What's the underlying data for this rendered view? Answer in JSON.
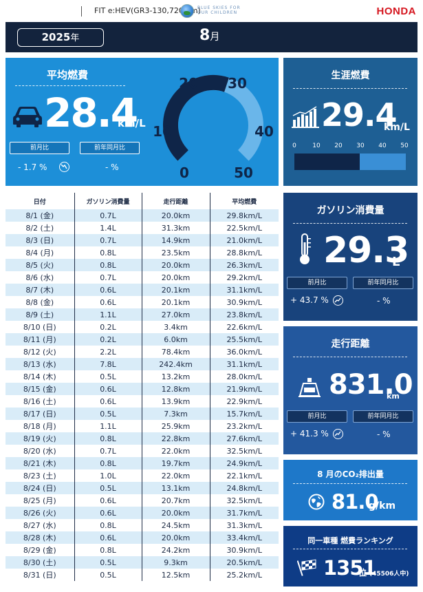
{
  "header": {
    "vehicle_model": "FIT e:HEV(GR3-130,720 km)",
    "slogan": "BLUE SKIES FOR OUR CHILDREN",
    "brand": "HONDA",
    "brand_color": "#d5161f"
  },
  "period": {
    "year": "2025",
    "year_unit": "年",
    "month": "8",
    "month_unit": "月"
  },
  "average": {
    "title": "平均燃費",
    "value": "28.4",
    "unit": "km/L",
    "prev_month_label": "前月比",
    "prev_year_label": "前年同月比",
    "prev_month_value": "- 1.7 %",
    "prev_year_value": "- %",
    "icon": "car-icon",
    "trend_icon": "trend-down-icon",
    "gauge": {
      "labels": [
        "0",
        "10",
        "20",
        "30",
        "40",
        "50"
      ],
      "min": 0,
      "max": 50,
      "value": 28.4
    }
  },
  "lifetime": {
    "title": "生涯燃費",
    "value": "29.4",
    "unit": "km/L",
    "icon": "bar-chart-icon",
    "scale_labels": [
      "0",
      "10",
      "20",
      "30",
      "40",
      "50"
    ],
    "scale_min": 0,
    "scale_max": 50,
    "bar_value": 29.4
  },
  "table": {
    "headers": [
      "日付",
      "ガソリン消費量",
      "走行距離",
      "平均燃費"
    ],
    "rows": [
      [
        "8/1 (金)",
        "0.7L",
        "20.0km",
        "29.8km/L"
      ],
      [
        "8/2 (土)",
        "1.4L",
        "31.3km",
        "22.5km/L"
      ],
      [
        "8/3 (日)",
        "0.7L",
        "14.9km",
        "21.0km/L"
      ],
      [
        "8/4 (月)",
        "0.8L",
        "23.5km",
        "28.8km/L"
      ],
      [
        "8/5 (火)",
        "0.8L",
        "20.0km",
        "26.3km/L"
      ],
      [
        "8/6 (水)",
        "0.7L",
        "20.0km",
        "29.2km/L"
      ],
      [
        "8/7 (木)",
        "0.6L",
        "20.1km",
        "31.1km/L"
      ],
      [
        "8/8 (金)",
        "0.6L",
        "20.1km",
        "30.9km/L"
      ],
      [
        "8/9 (土)",
        "1.1L",
        "27.0km",
        "23.8km/L"
      ],
      [
        "8/10 (日)",
        "0.2L",
        "3.4km",
        "22.6km/L"
      ],
      [
        "8/11 (月)",
        "0.2L",
        "6.0km",
        "25.5km/L"
      ],
      [
        "8/12 (火)",
        "2.2L",
        "78.4km",
        "36.0km/L"
      ],
      [
        "8/13 (水)",
        "7.8L",
        "242.4km",
        "31.1km/L"
      ],
      [
        "8/14 (木)",
        "0.5L",
        "13.2km",
        "28.0km/L"
      ],
      [
        "8/15 (金)",
        "0.6L",
        "12.8km",
        "21.9km/L"
      ],
      [
        "8/16 (土)",
        "0.6L",
        "13.9km",
        "22.9km/L"
      ],
      [
        "8/17 (日)",
        "0.5L",
        "7.3km",
        "15.7km/L"
      ],
      [
        "8/18 (月)",
        "1.1L",
        "25.9km",
        "23.2km/L"
      ],
      [
        "8/19 (火)",
        "0.8L",
        "22.8km",
        "27.6km/L"
      ],
      [
        "8/20 (水)",
        "0.7L",
        "22.0km",
        "32.5km/L"
      ],
      [
        "8/21 (木)",
        "0.8L",
        "19.7km",
        "24.9km/L"
      ],
      [
        "8/23 (土)",
        "1.0L",
        "22.0km",
        "22.1km/L"
      ],
      [
        "8/24 (日)",
        "0.5L",
        "13.1km",
        "24.8km/L"
      ],
      [
        "8/25 (月)",
        "0.6L",
        "20.7km",
        "32.5km/L"
      ],
      [
        "8/26 (火)",
        "0.6L",
        "20.0km",
        "31.7km/L"
      ],
      [
        "8/27 (水)",
        "0.8L",
        "24.5km",
        "31.3km/L"
      ],
      [
        "8/28 (木)",
        "0.6L",
        "20.0km",
        "33.4km/L"
      ],
      [
        "8/29 (金)",
        "0.8L",
        "24.2km",
        "30.9km/L"
      ],
      [
        "8/30 (土)",
        "0.5L",
        "9.3km",
        "20.5km/L"
      ],
      [
        "8/31 (日)",
        "0.5L",
        "12.5km",
        "25.2km/L"
      ]
    ]
  },
  "gasoline": {
    "title": "ガソリン消費量",
    "value": "29.3",
    "unit": "L",
    "icon": "thermometer-icon",
    "prev_month_label": "前月比",
    "prev_year_label": "前年同月比",
    "prev_month_value": "+ 43.7 %",
    "prev_year_value": "- %",
    "trend_icon": "trend-up-icon"
  },
  "distance": {
    "title": "走行距離",
    "value": "831.0",
    "unit": "km",
    "icon": "odometer-icon",
    "prev_month_label": "前月比",
    "prev_year_label": "前年同月比",
    "prev_month_value": "+ 41.3 %",
    "prev_year_value": "- %",
    "trend_icon": "trend-up-icon"
  },
  "co2": {
    "title": "8 月のCO₂排出量",
    "value": "81.0",
    "unit": "g/km",
    "icon": "globe-icon"
  },
  "ranking": {
    "title": "同一車種 燃費ランキング",
    "value": "1351",
    "unit": "位",
    "total": "(45506人中)",
    "icon": "checkered-flag-icon"
  }
}
